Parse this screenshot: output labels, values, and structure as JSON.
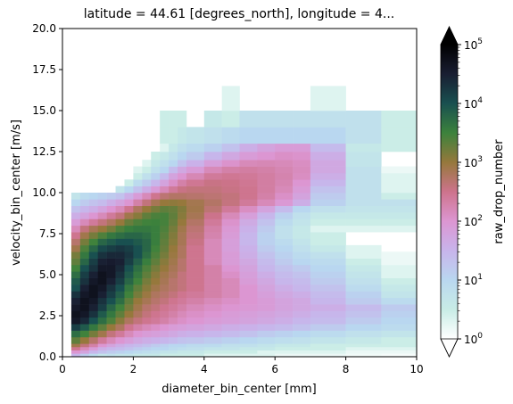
{
  "chart_data": {
    "type": "heatmap",
    "title": "latitude = 44.61 [degrees_north], longitude = 4...",
    "xlabel": "diameter_bin_center [mm]",
    "ylabel": "velocity_bin_center [m/s]",
    "xlim": [
      0,
      10
    ],
    "ylim": [
      0,
      20
    ],
    "x_ticks": [
      0,
      2,
      4,
      6,
      8,
      10
    ],
    "x_tick_labels": [
      "0",
      "2",
      "4",
      "6",
      "8",
      "10"
    ],
    "y_ticks": [
      0,
      2.5,
      5,
      7.5,
      10,
      12.5,
      15,
      17.5,
      20
    ],
    "y_tick_labels": [
      "0.0",
      "2.5",
      "5.0",
      "7.5",
      "10.0",
      "12.5",
      "15.0",
      "17.5",
      "20.0"
    ],
    "colorbar": {
      "label": "raw_drop_number",
      "scale": "log",
      "range": [
        1,
        100000
      ],
      "ticks": [
        1,
        10,
        100,
        1000,
        10000,
        100000
      ],
      "tick_labels": [
        "10^0",
        "10^1",
        "10^2",
        "10^3",
        "10^4",
        "10^5"
      ],
      "extend": "both",
      "colormap": "cubehelix-like (white → blue → pink → olive → green → teal → black)"
    },
    "x_edges": [
      0.25,
      0.5,
      0.75,
      1.0,
      1.25,
      1.5,
      1.75,
      2.0,
      2.25,
      2.5,
      2.75,
      3.0,
      3.25,
      3.5,
      4.0,
      4.5,
      5.0,
      5.5,
      6.0,
      6.5,
      7.0,
      8.0,
      9.0,
      10.0
    ],
    "rows": [
      {
        "v": [
          0.0,
          0.2
        ],
        "values": [
          30,
          15,
          8,
          5,
          6,
          5,
          5,
          4,
          4,
          4,
          3,
          3,
          3,
          3,
          2,
          2,
          2,
          2,
          1.5,
          1.5,
          1.5,
          1.3,
          1.2
        ]
      },
      {
        "v": [
          0.2,
          0.4
        ],
        "values": [
          100,
          60,
          30,
          20,
          15,
          12,
          10,
          8,
          7,
          6,
          5,
          5,
          4,
          4,
          3,
          3,
          3,
          2,
          2,
          2,
          2,
          1.5,
          1.5
        ]
      },
      {
        "v": [
          0.4,
          0.6
        ],
        "values": [
          300,
          150,
          80,
          40,
          30,
          25,
          20,
          15,
          12,
          10,
          10,
          8,
          7,
          6,
          5,
          5,
          4,
          4,
          3,
          3,
          3,
          2,
          2
        ]
      },
      {
        "v": [
          0.6,
          0.8
        ],
        "values": [
          800,
          400,
          200,
          100,
          60,
          40,
          30,
          25,
          20,
          15,
          12,
          10,
          10,
          8,
          8,
          6,
          6,
          5,
          4,
          4,
          3,
          3,
          3
        ]
      },
      {
        "v": [
          0.8,
          1.2
        ],
        "values": [
          2000,
          1000,
          500,
          250,
          150,
          100,
          70,
          50,
          40,
          35,
          30,
          25,
          20,
          18,
          15,
          12,
          10,
          8,
          7,
          6,
          5,
          4,
          3
        ]
      },
      {
        "v": [
          1.2,
          1.6
        ],
        "values": [
          5000,
          3000,
          1500,
          800,
          400,
          250,
          150,
          100,
          80,
          70,
          60,
          50,
          40,
          35,
          30,
          25,
          20,
          15,
          12,
          10,
          8,
          6,
          5
        ]
      },
      {
        "v": [
          1.6,
          2.0
        ],
        "values": [
          15000,
          8000,
          4000,
          2000,
          1000,
          600,
          300,
          200,
          150,
          120,
          100,
          80,
          70,
          60,
          50,
          40,
          35,
          30,
          25,
          20,
          15,
          10,
          8
        ]
      },
      {
        "v": [
          2.0,
          2.4
        ],
        "values": [
          40000,
          25000,
          10000,
          5000,
          2500,
          1200,
          600,
          400,
          300,
          250,
          200,
          150,
          120,
          100,
          80,
          70,
          60,
          50,
          40,
          30,
          25,
          15,
          10
        ]
      },
      {
        "v": [
          2.4,
          2.8
        ],
        "values": [
          50000,
          40000,
          20000,
          8000,
          4000,
          2000,
          1000,
          600,
          400,
          300,
          250,
          200,
          150,
          120,
          100,
          80,
          70,
          60,
          50,
          40,
          30,
          20,
          12
        ]
      },
      {
        "v": [
          2.8,
          3.2
        ],
        "values": [
          40000,
          50000,
          30000,
          15000,
          6000,
          3000,
          1500,
          800,
          500,
          400,
          300,
          250,
          200,
          150,
          120,
          100,
          90,
          80,
          60,
          50,
          40,
          25,
          15
        ]
      },
      {
        "v": [
          3.2,
          3.6
        ],
        "values": [
          30000,
          50000,
          40000,
          20000,
          10000,
          5000,
          2000,
          1000,
          700,
          500,
          400,
          300,
          250,
          200,
          150,
          120,
          100,
          80,
          60,
          50,
          30,
          15,
          8
        ]
      },
      {
        "v": [
          3.6,
          4.0
        ],
        "values": [
          20000,
          40000,
          50000,
          30000,
          15000,
          7000,
          3000,
          1500,
          900,
          600,
          500,
          400,
          300,
          250,
          200,
          150,
          100,
          70,
          50,
          40,
          25,
          12,
          5
        ]
      },
      {
        "v": [
          4.0,
          4.4
        ],
        "values": [
          10000,
          30000,
          50000,
          40000,
          20000,
          10000,
          4000,
          2000,
          1200,
          800,
          600,
          500,
          400,
          300,
          200,
          150,
          100,
          60,
          40,
          30,
          20,
          8,
          4
        ]
      },
      {
        "v": [
          4.4,
          4.8
        ],
        "values": [
          8000,
          20000,
          40000,
          50000,
          30000,
          15000,
          6000,
          3000,
          1500,
          1000,
          700,
          500,
          400,
          300,
          200,
          150,
          80,
          50,
          30,
          25,
          15,
          6,
          3
        ]
      },
      {
        "v": [
          4.8,
          5.2
        ],
        "values": [
          5000,
          15000,
          30000,
          50000,
          40000,
          20000,
          8000,
          4000,
          2000,
          1200,
          800,
          600,
          400,
          300,
          200,
          120,
          70,
          40,
          25,
          20,
          12,
          5,
          2
        ]
      },
      {
        "v": [
          5.2,
          5.6
        ],
        "values": [
          3000,
          10000,
          20000,
          40000,
          40000,
          25000,
          10000,
          5000,
          2500,
          1500,
          1000,
          700,
          500,
          300,
          200,
          100,
          60,
          30,
          20,
          15,
          10,
          4,
          2
        ]
      },
      {
        "v": [
          5.6,
          6.0
        ],
        "values": [
          2000,
          6000,
          15000,
          30000,
          35000,
          30000,
          15000,
          7000,
          3500,
          2000,
          1200,
          800,
          500,
          300,
          150,
          80,
          50,
          25,
          15,
          10,
          8,
          3,
          1.5
        ]
      },
      {
        "v": [
          6.0,
          6.4
        ],
        "values": [
          1500,
          4000,
          10000,
          20000,
          25000,
          25000,
          18000,
          10000,
          5000,
          2500,
          1500,
          900,
          600,
          300,
          150,
          80,
          40,
          20,
          12,
          8,
          6,
          2,
          1.5
        ]
      },
      {
        "v": [
          6.4,
          6.8
        ],
        "values": [
          800,
          2500,
          6000,
          12000,
          15000,
          18000,
          15000,
          10000,
          6000,
          3000,
          1800,
          1000,
          600,
          300,
          150,
          70,
          35,
          15,
          10,
          6,
          4,
          2,
          null
        ]
      },
      {
        "v": [
          6.8,
          7.2
        ],
        "values": [
          500,
          1500,
          3000,
          6000,
          8000,
          10000,
          10000,
          8000,
          6000,
          3500,
          2000,
          1200,
          700,
          350,
          150,
          70,
          30,
          12,
          8,
          5,
          3,
          null,
          null
        ]
      },
      {
        "v": [
          7.2,
          7.6
        ],
        "values": [
          300,
          800,
          1500,
          2500,
          4000,
          5000,
          6000,
          6000,
          5000,
          3500,
          2200,
          1300,
          700,
          400,
          180,
          80,
          30,
          12,
          6,
          4,
          3,
          null,
          null
        ]
      },
      {
        "v": [
          7.6,
          8.0
        ],
        "values": [
          150,
          400,
          700,
          1000,
          1500,
          2500,
          3500,
          4000,
          4000,
          3500,
          2500,
          1500,
          800,
          450,
          200,
          90,
          35,
          15,
          6,
          4,
          2,
          2,
          2
        ]
      },
      {
        "v": [
          8.0,
          8.4
        ],
        "values": [
          80,
          150,
          250,
          400,
          600,
          1000,
          1800,
          2500,
          3000,
          3200,
          2800,
          1800,
          1000,
          550,
          250,
          110,
          45,
          20,
          8,
          5,
          3,
          3,
          3
        ]
      },
      {
        "v": [
          8.4,
          8.8
        ],
        "values": [
          40,
          60,
          100,
          150,
          250,
          400,
          800,
          1200,
          2000,
          2600,
          2800,
          2000,
          1200,
          700,
          320,
          150,
          70,
          30,
          12,
          6,
          4,
          4,
          4
        ]
      },
      {
        "v": [
          8.8,
          9.2
        ],
        "values": [
          20,
          30,
          40,
          60,
          100,
          150,
          300,
          600,
          1000,
          1500,
          2000,
          1800,
          1300,
          800,
          450,
          250,
          130,
          60,
          25,
          10,
          6,
          5,
          5
        ]
      },
      {
        "v": [
          9.2,
          9.6
        ],
        "values": [
          10,
          15,
          20,
          25,
          40,
          60,
          100,
          200,
          400,
          700,
          1000,
          1100,
          1000,
          750,
          550,
          380,
          250,
          150,
          90,
          40,
          12,
          6,
          6
        ]
      },
      {
        "v": [
          9.6,
          10.0
        ],
        "values": [
          5,
          8,
          10,
          12,
          15,
          20,
          40,
          80,
          150,
          300,
          450,
          550,
          550,
          500,
          450,
          400,
          300,
          200,
          120,
          60,
          15,
          6,
          3
        ]
      },
      {
        "v": [
          10.0,
          10.4
        ],
        "values": [
          null,
          null,
          null,
          null,
          null,
          5,
          10,
          20,
          40,
          80,
          150,
          250,
          350,
          400,
          400,
          350,
          300,
          220,
          150,
          80,
          20,
          6,
          2
        ]
      },
      {
        "v": [
          10.4,
          10.8
        ],
        "values": [
          null,
          null,
          null,
          null,
          null,
          null,
          3,
          8,
          15,
          30,
          60,
          120,
          200,
          280,
          350,
          330,
          280,
          220,
          170,
          100,
          30,
          6,
          2
        ]
      },
      {
        "v": [
          10.8,
          11.2
        ],
        "values": [
          null,
          null,
          null,
          null,
          null,
          null,
          null,
          3,
          6,
          12,
          25,
          60,
          100,
          160,
          250,
          280,
          260,
          220,
          180,
          130,
          40,
          6,
          2
        ]
      },
      {
        "v": [
          11.2,
          11.6
        ],
        "values": [
          null,
          null,
          null,
          null,
          null,
          null,
          null,
          2,
          3,
          6,
          10,
          25,
          50,
          80,
          150,
          200,
          220,
          200,
          170,
          140,
          50,
          6,
          1.5
        ]
      },
      {
        "v": [
          11.6,
          12.0
        ],
        "values": [
          null,
          null,
          null,
          null,
          null,
          null,
          null,
          null,
          2,
          4,
          6,
          10,
          20,
          35,
          70,
          110,
          150,
          160,
          150,
          130,
          50,
          5,
          null
        ]
      },
      {
        "v": [
          12.0,
          12.5
        ],
        "values": [
          null,
          null,
          null,
          null,
          null,
          null,
          null,
          null,
          null,
          3,
          4,
          6,
          10,
          15,
          30,
          50,
          80,
          100,
          120,
          110,
          40,
          5,
          null
        ]
      },
      {
        "v": [
          12.5,
          13.0
        ],
        "values": [
          null,
          null,
          null,
          null,
          null,
          null,
          null,
          null,
          null,
          null,
          2,
          4,
          6,
          8,
          12,
          20,
          40,
          60,
          80,
          80,
          25,
          4,
          3
        ]
      },
      {
        "v": [
          13.0,
          14.0
        ],
        "values": [
          null,
          null,
          null,
          null,
          null,
          null,
          null,
          null,
          null,
          null,
          3,
          3,
          4,
          5,
          6,
          8,
          10,
          10,
          10,
          10,
          10,
          6,
          3
        ]
      },
      {
        "v": [
          14.0,
          15.0
        ],
        "values": [
          null,
          null,
          null,
          null,
          null,
          null,
          null,
          null,
          null,
          null,
          3,
          3,
          3,
          null,
          4,
          3,
          6,
          6,
          6,
          6,
          6,
          6,
          3
        ]
      },
      {
        "v": [
          15.0,
          16.5
        ],
        "values": [
          null,
          null,
          null,
          null,
          null,
          null,
          null,
          null,
          null,
          null,
          null,
          null,
          null,
          null,
          null,
          2,
          null,
          null,
          null,
          null,
          2,
          null,
          null
        ]
      }
    ]
  }
}
